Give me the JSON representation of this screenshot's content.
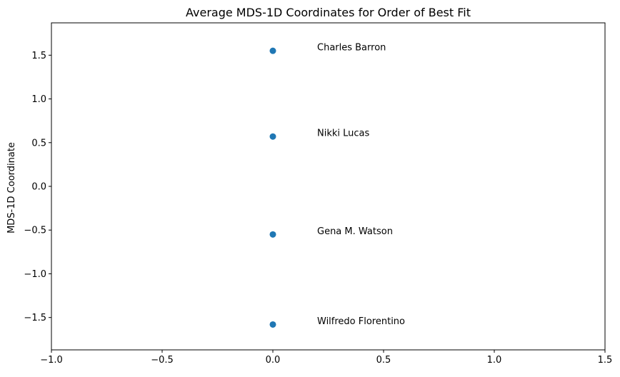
{
  "chart_data": {
    "type": "scatter",
    "title": "Average MDS-1D Coordinates for Order of Best Fit",
    "xlabel": "",
    "ylabel": "MDS-1D Coordinate",
    "xlim": [
      -1.0,
      1.5
    ],
    "ylim": [
      -1.87,
      1.87
    ],
    "grid": false,
    "legend": false,
    "marker_color": "#1f77b4",
    "x_ticks": [
      -1.0,
      -0.5,
      0.0,
      0.5,
      1.0,
      1.5
    ],
    "x_tick_labels": [
      "−1.0",
      "−0.5",
      "0.0",
      "0.5",
      "1.0",
      "1.5"
    ],
    "y_ticks": [
      1.5,
      1.0,
      0.5,
      0.0,
      -0.5,
      -1.0,
      -1.5
    ],
    "y_tick_labels": [
      "1.5",
      "1.0",
      "0.5",
      "0.0",
      "−0.5",
      "−1.0",
      "−1.5"
    ],
    "points": [
      {
        "x": 0.0,
        "y": 1.55
      },
      {
        "x": 0.0,
        "y": 0.57
      },
      {
        "x": 0.0,
        "y": -0.55
      },
      {
        "x": 0.0,
        "y": -1.58
      }
    ],
    "annotations": [
      {
        "text": "Charles Barron",
        "x": 0.2,
        "y": 1.55
      },
      {
        "text": "Nikki Lucas",
        "x": 0.2,
        "y": 0.57
      },
      {
        "text": "Gena M. Watson",
        "x": 0.2,
        "y": -0.55
      },
      {
        "text": "Wilfredo Florentino",
        "x": 0.2,
        "y": -1.58
      }
    ]
  }
}
